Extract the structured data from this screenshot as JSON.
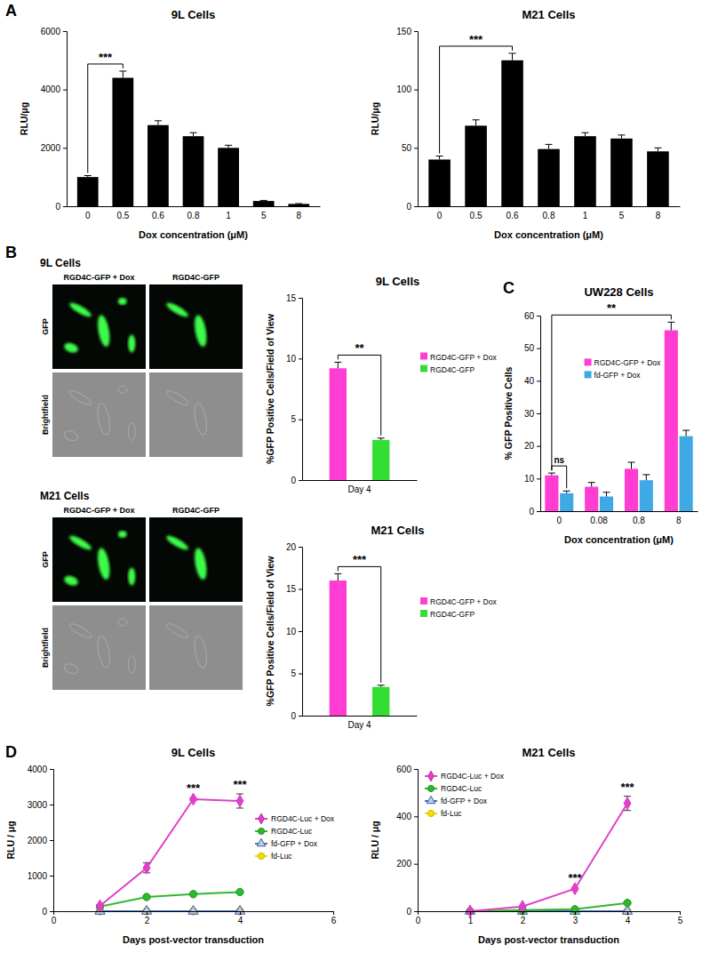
{
  "panel_labels": [
    "A",
    "B",
    "C",
    "D"
  ],
  "micrographs": [
    {
      "title": "9L Cells",
      "columns": [
        "RGD4C-GFP + Dox",
        "RGD4C-GFP"
      ],
      "rows": [
        "GFP",
        "Brightfield"
      ]
    },
    {
      "title": "M21 Cells",
      "columns": [
        "RGD4C-GFP + Dox",
        "RGD4C-GFP"
      ],
      "rows": [
        "GFP",
        "Brightfield"
      ]
    }
  ],
  "chart_data": [
    {
      "type": "bar",
      "title": "9L Cells",
      "x_label": "Dox concentration (μM)",
      "y_label": "RLU/μg",
      "categories": [
        "0",
        "0.5",
        "0.6",
        "0.8",
        "1",
        "5",
        "8"
      ],
      "values": [
        1000,
        4400,
        2780,
        2400,
        2000,
        180,
        80
      ],
      "errors": [
        50,
        230,
        150,
        120,
        90,
        20,
        10
      ],
      "color": "#000000",
      "ylim": [
        0,
        6000
      ],
      "yticks": [
        0,
        2000,
        4000,
        6000
      ],
      "annotations": [
        {
          "text": "***",
          "from": "0",
          "to": "0.5"
        }
      ]
    },
    {
      "type": "bar",
      "title": "M21 Cells",
      "x_label": "Dox concentration (μM)",
      "y_label": "RLU/μg",
      "categories": [
        "0",
        "0.5",
        "0.6",
        "0.8",
        "1",
        "5",
        "8"
      ],
      "values": [
        40,
        69,
        125,
        49,
        60,
        58,
        47
      ],
      "errors": [
        3,
        5,
        6,
        4,
        3,
        3,
        3
      ],
      "color": "#000000",
      "ylim": [
        0,
        150
      ],
      "yticks": [
        0,
        50,
        100,
        150
      ],
      "annotations": [
        {
          "text": "***",
          "from": "0",
          "to": "0.6"
        }
      ]
    },
    {
      "type": "bar",
      "title": "9L Cells",
      "y_label": "%GFP Positive Cells/Field of View",
      "categories": [
        "Day 4"
      ],
      "series": [
        {
          "name": "RGD4C-GFP + Dox",
          "color": "#ff3dd2",
          "values": [
            9.2
          ],
          "errors": [
            0.5
          ]
        },
        {
          "name": "RGD4C-GFP",
          "color": "#33dd33",
          "values": [
            3.3
          ],
          "errors": [
            0.15
          ]
        }
      ],
      "ylim": [
        0,
        15
      ],
      "yticks": [
        0,
        5,
        10,
        15
      ],
      "legend": "right",
      "annotations": [
        {
          "text": "**",
          "from": "RGD4C-GFP + Dox",
          "to": "RGD4C-GFP"
        }
      ]
    },
    {
      "type": "bar",
      "title": "M21 Cells",
      "y_label": "%GFP Positive Cells/Field of View",
      "categories": [
        "Day 4"
      ],
      "series": [
        {
          "name": "RGD4C-GFP + Dox",
          "color": "#ff3dd2",
          "values": [
            16
          ],
          "errors": [
            0.8
          ]
        },
        {
          "name": "RGD4C-GFP",
          "color": "#33dd33",
          "values": [
            3.4
          ],
          "errors": [
            0.2
          ]
        }
      ],
      "ylim": [
        0,
        20
      ],
      "yticks": [
        0,
        5,
        10,
        15,
        20
      ],
      "legend": "right",
      "annotations": [
        {
          "text": "***",
          "from": "RGD4C-GFP + Dox",
          "to": "RGD4C-GFP"
        }
      ]
    },
    {
      "type": "bar",
      "title": "UW228 Cells",
      "x_label": "Dox concentration (μM)",
      "y_label": "% GFP Positive Cells",
      "categories": [
        "0",
        "0.08",
        "0.8",
        "8"
      ],
      "series": [
        {
          "name": "RGD4C-GFP + Dox",
          "color": "#ff3dd2",
          "values": [
            11,
            7.5,
            13,
            55.5
          ],
          "errors": [
            0.7,
            1.3,
            2,
            2.5
          ]
        },
        {
          "name": "fd-GFP + Dox",
          "color": "#3fa9e6",
          "values": [
            5.5,
            4.5,
            9.5,
            23
          ],
          "errors": [
            0.7,
            1.3,
            1.7,
            1.8
          ]
        }
      ],
      "ylim": [
        0,
        60
      ],
      "yticks": [
        0,
        10,
        20,
        30,
        40,
        50,
        60
      ],
      "legend": "top",
      "annotations": [
        {
          "text": "ns",
          "category": "0",
          "from": "RGD4C-GFP + Dox",
          "to": "fd-GFP + Dox"
        },
        {
          "text": "**",
          "from": "0",
          "to": "8"
        }
      ]
    },
    {
      "type": "line",
      "title": "9L Cells",
      "x_label": "Days post-vector transduction",
      "y_label": "RLU / μg",
      "x": [
        1,
        2,
        3,
        4
      ],
      "series": [
        {
          "name": "RGD4C-Luc + Dox",
          "color": "#e040c8",
          "marker": "diamond",
          "values": [
            150,
            1220,
            3150,
            3100
          ],
          "errors": [
            30,
            140,
            40,
            200
          ]
        },
        {
          "name": "RGD4C-Luc",
          "color": "#2eb82e",
          "marker": "circle",
          "values": [
            130,
            400,
            480,
            540
          ],
          "errors": [
            10,
            20,
            20,
            20
          ]
        },
        {
          "name": "fd-GFP + Dox",
          "color": "#4472c4",
          "marker": "triangle",
          "values": [
            0,
            0,
            0,
            0
          ]
        },
        {
          "name": "fd-Luc",
          "color": "#f2e000",
          "marker": "circle",
          "values": [
            0,
            0,
            0,
            0
          ]
        }
      ],
      "xlim": [
        0,
        6
      ],
      "xticks": [
        0,
        2,
        4,
        6
      ],
      "ylim": [
        0,
        4000
      ],
      "yticks": [
        0,
        1000,
        2000,
        3000,
        4000
      ],
      "legend": "right",
      "annotations": [
        {
          "text": "***",
          "x": 3
        },
        {
          "text": "***",
          "x": 4
        }
      ]
    },
    {
      "type": "line",
      "title": "M21 Cells",
      "x_label": "Days post-vector transduction",
      "y_label": "RLU / μg",
      "x": [
        1,
        2,
        3,
        4
      ],
      "series": [
        {
          "name": "RGD4C-Luc + Dox",
          "color": "#e040c8",
          "marker": "diamond",
          "values": [
            0,
            20,
            95,
            455
          ],
          "errors": [
            0,
            3,
            5,
            30
          ]
        },
        {
          "name": "RGD4C-Luc",
          "color": "#2eb82e",
          "marker": "circle",
          "values": [
            0,
            5,
            8,
            35
          ],
          "errors": [
            0,
            1,
            1,
            3
          ]
        },
        {
          "name": "fd-GFP + Dox",
          "color": "#4472c4",
          "marker": "triangle",
          "values": [
            0,
            0,
            0,
            0
          ]
        },
        {
          "name": "fd-Luc",
          "color": "#f2e000",
          "marker": "circle",
          "values": [
            0,
            0,
            0,
            0
          ]
        }
      ],
      "xlim": [
        0,
        5
      ],
      "xticks": [
        0,
        1,
        2,
        3,
        4,
        5
      ],
      "ylim": [
        0,
        600
      ],
      "yticks": [
        0,
        200,
        400,
        600
      ],
      "legend": "upper left",
      "annotations": [
        {
          "text": "***",
          "x": 3
        },
        {
          "text": "***",
          "x": 4
        }
      ]
    }
  ]
}
